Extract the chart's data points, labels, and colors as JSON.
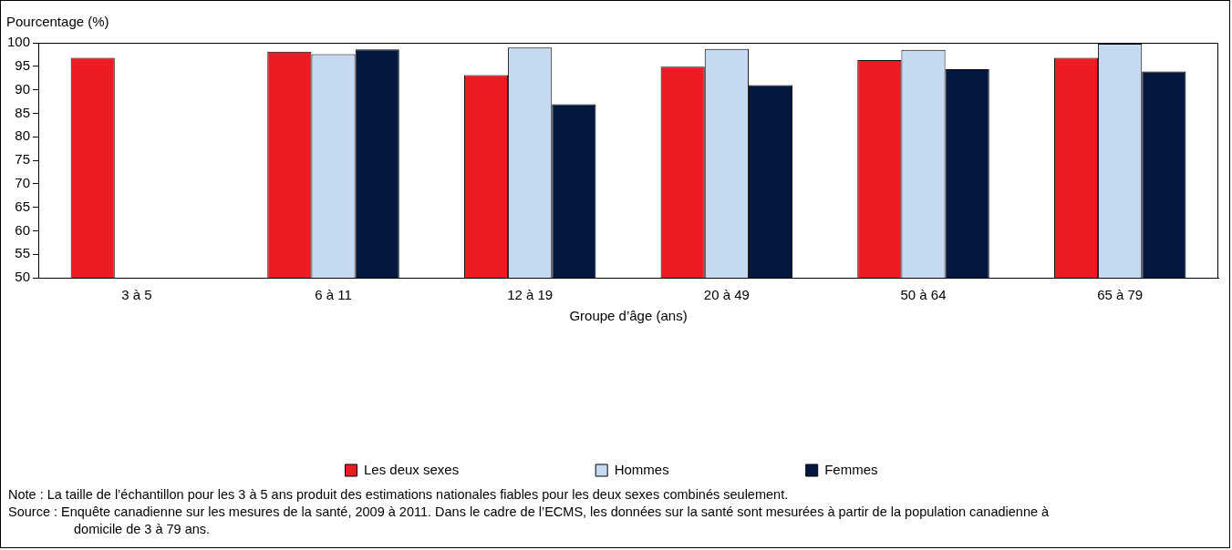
{
  "chart_data": {
    "type": "bar",
    "ylabel": "Pourcentage (%)",
    "xlabel": "Groupe d’âge (ans)",
    "categories": [
      "3 à 5",
      "6 à 11",
      "12 à 19",
      "20 à 49",
      "50 à 64",
      "65 à 79"
    ],
    "series": [
      {
        "name": "Les deux sexes",
        "color": "#ed1c24",
        "values": [
          96.8,
          98.1,
          93.1,
          94.9,
          96.3,
          96.8
        ]
      },
      {
        "name": "Hommes",
        "color": "#c5d9f1",
        "values": [
          null,
          97.6,
          99.0,
          98.7,
          98.5,
          99.8
        ]
      },
      {
        "name": "Femmes",
        "color": "#04183f",
        "values": [
          null,
          98.6,
          86.9,
          91.0,
          94.4,
          93.9
        ]
      }
    ],
    "ylim": [
      50,
      100
    ],
    "yticks": [
      50,
      55,
      60,
      65,
      70,
      75,
      80,
      85,
      90,
      95,
      100
    ],
    "grid": false,
    "legend": "bottom",
    "annotations": [
      "Note :      La taille de l’échantillon pour les 3 à 5 ans produit des estimations nationales fiables pour les deux sexes combinés seulement.",
      "Source : Enquête canadienne sur les mesures de la santé, 2009 à 2011. Dans le cadre de l’ECMS, les données sur la santé sont mesurées à partir de la population canadienne à domicile de 3 à 79 ans."
    ]
  }
}
